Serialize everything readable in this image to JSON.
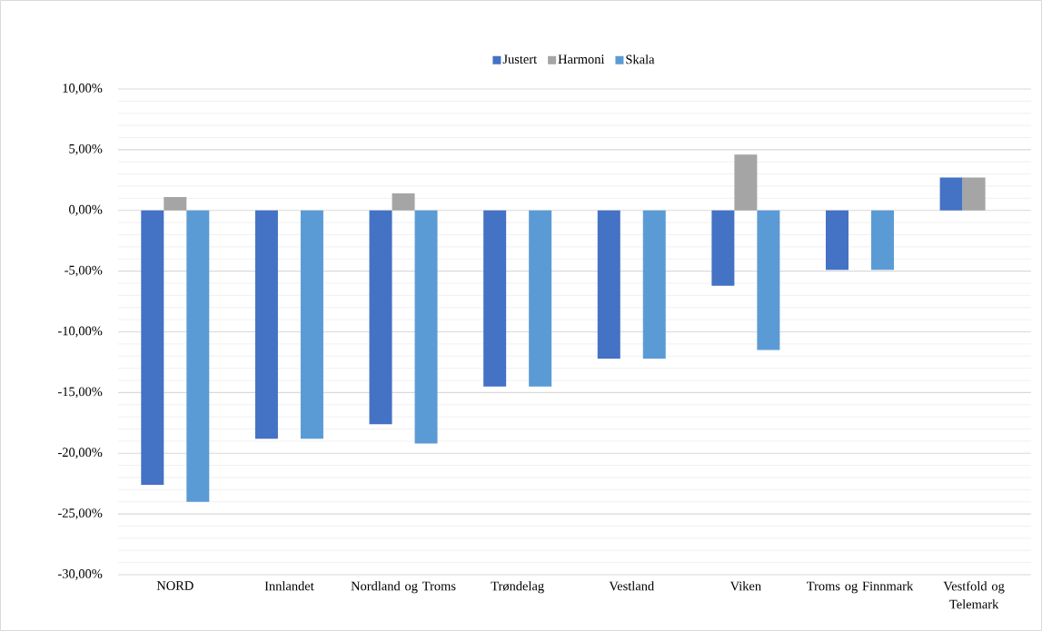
{
  "chart_data": {
    "type": "bar",
    "categories": [
      "NORD",
      "Innlandet",
      "Nordland og Troms",
      "Trøndelag",
      "Vestland",
      "Viken",
      "Troms og Finnmark",
      "Vestfold og Telemark"
    ],
    "series": [
      {
        "name": "Justert",
        "color": "#4472c4",
        "values": [
          -22.6,
          -18.8,
          -17.6,
          -14.5,
          -12.2,
          -6.2,
          -4.9,
          2.7
        ]
      },
      {
        "name": "Harmoni",
        "color": "#a5a5a5",
        "values": [
          1.1,
          null,
          1.4,
          null,
          null,
          4.6,
          null,
          2.7
        ]
      },
      {
        "name": "Skala",
        "color": "#5b9bd5",
        "values": [
          -24.0,
          -18.8,
          -19.2,
          -14.5,
          -12.2,
          -11.5,
          -4.9,
          null
        ]
      }
    ],
    "ylim": [
      -30,
      10
    ],
    "yticks": [
      {
        "value": -30,
        "label": "-30,00%"
      },
      {
        "value": -25,
        "label": "-25,00%"
      },
      {
        "value": -20,
        "label": "-20,00%"
      },
      {
        "value": -15,
        "label": "-15,00%"
      },
      {
        "value": -10,
        "label": "-10,00%"
      },
      {
        "value": -5,
        "label": "-5,00%"
      },
      {
        "value": 0,
        "label": "0,00%"
      },
      {
        "value": 5,
        "label": "5,00%"
      },
      {
        "value": 10,
        "label": "10,00%"
      }
    ],
    "grid": "y",
    "legend": "top"
  }
}
